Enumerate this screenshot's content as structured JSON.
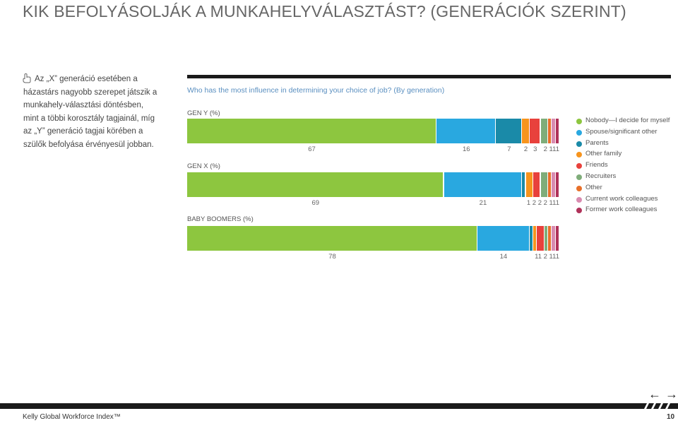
{
  "page_title": "KIK BEFOLYÁSOLJÁK A MUNKAHELYVÁLASZTÁST? (GENERÁCIÓK SZERINT)",
  "bullet_text": "Az „X” generáció esetében a házastárs nagyobb szerepet játszik a munkahely-választási döntésben, mint a többi korosztály tagjainál, míg az „Y” generáció tagjai körében a szülők befolyása érvényesül jobban.",
  "colors": {
    "Nobody—I decide for myself": "#8dc63f",
    "Spouse/significant other": "#29a8e0",
    "Parents": "#1a8aa8",
    "Other family": "#f7941d",
    "Friends": "#e8413c",
    "Recruiters": "#7fad7a",
    "Other": "#e8702a",
    "Current work colleagues": "#d98bb0",
    "Former work colleagues": "#b0325a"
  },
  "chart_data": {
    "type": "bar",
    "orientation": "horizontal-stacked-100",
    "title": "Who has the most influence in determining your choice of job? (By generation)",
    "categories": [
      "GEN Y (%)",
      "GEN X (%)",
      "BABY BOOMERS (%)"
    ],
    "series": [
      {
        "name": "Nobody—I decide for myself",
        "values": [
          67,
          69,
          78
        ]
      },
      {
        "name": "Spouse/significant other",
        "values": [
          16,
          21,
          14
        ]
      },
      {
        "name": "Parents",
        "values": [
          7,
          1,
          1
        ]
      },
      {
        "name": "Other family",
        "values": [
          2,
          2,
          1
        ]
      },
      {
        "name": "Friends",
        "values": [
          3,
          2,
          2
        ]
      },
      {
        "name": "Recruiters",
        "values": [
          2,
          2,
          1
        ]
      },
      {
        "name": "Other",
        "values": [
          1,
          1,
          1
        ]
      },
      {
        "name": "Current work colleagues",
        "values": [
          1,
          1,
          1
        ]
      },
      {
        "name": "Former work colleagues",
        "values": [
          1,
          1,
          1
        ]
      }
    ],
    "value_labels": [
      {
        "shown": [
          "67",
          "16",
          "7",
          "2",
          "3"
        ],
        "tail": "2 111"
      },
      {
        "shown": [
          "69",
          "21"
        ],
        "tail": "1 2 2 2 111"
      },
      {
        "shown": [
          "78",
          "14"
        ],
        "tail": "11 2 111"
      }
    ],
    "legend_position": "right"
  },
  "nav": {
    "prev": "←",
    "next": "→"
  },
  "footer": "Kelly Global Workforce Index™",
  "page_number": "10"
}
